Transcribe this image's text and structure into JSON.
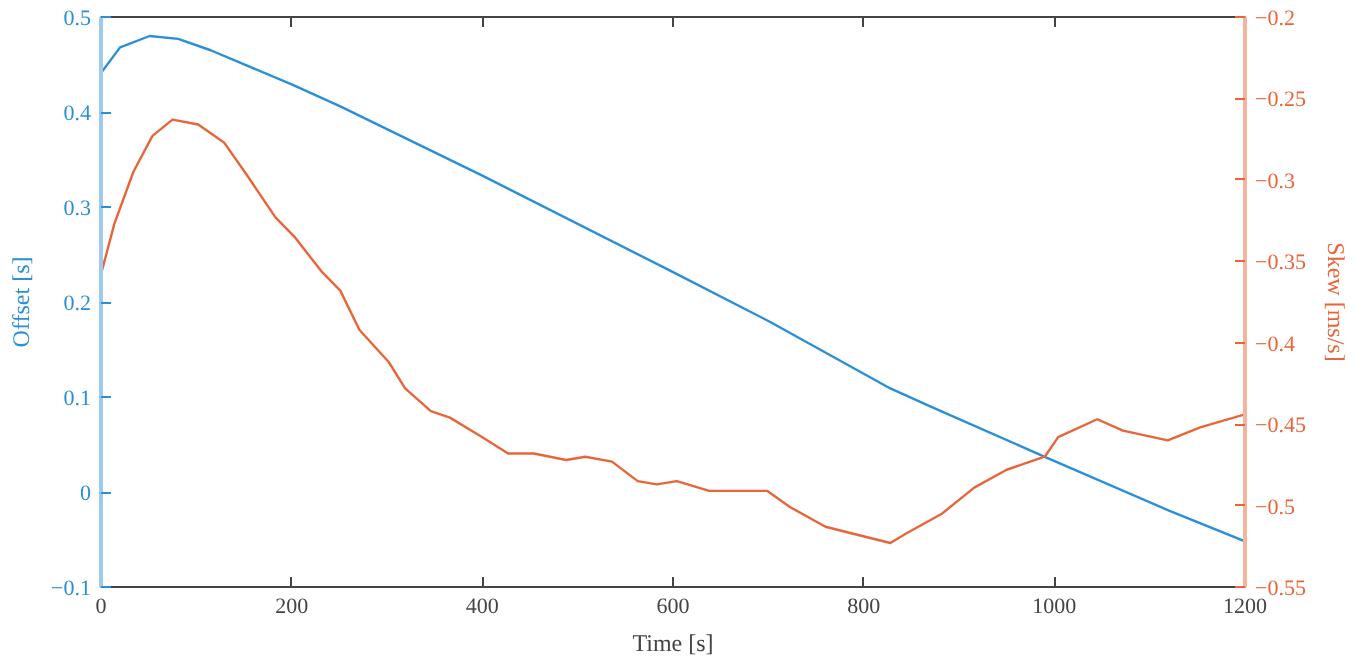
{
  "chart_data": {
    "type": "line",
    "xlabel": "Time [s]",
    "ylabel": "Offset [s]",
    "y2label": "Skew [ms/s]",
    "xlim": [
      0,
      1200
    ],
    "xticks": [
      0,
      200,
      400,
      600,
      800,
      1000,
      1200
    ],
    "ylim": [
      -0.1,
      0.5
    ],
    "yticks": [
      -0.1,
      0,
      0.1,
      0.2,
      0.3,
      0.4,
      0.5
    ],
    "y2lim": [
      -0.55,
      -0.2
    ],
    "y2ticks": [
      -0.55,
      -0.5,
      -0.45,
      -0.4,
      -0.35,
      -0.3,
      -0.25,
      -0.2
    ],
    "grid": false,
    "series": [
      {
        "color": "#2a8fd6",
        "x": [
          0,
          20,
          51,
          81,
          115,
          200,
          251,
          400,
          597,
          702,
          828,
          868,
          990,
          1119,
          1200
        ],
        "values": [
          0.441,
          0.468,
          0.48,
          0.477,
          0.465,
          0.429,
          0.406,
          0.333,
          0.233,
          0.179,
          0.109,
          0.091,
          0.037,
          -0.019,
          -0.052
        ]
      },
      {
        "color": "#e8653a",
        "axis": "y2",
        "x": [
          0,
          14,
          34,
          54,
          75,
          102,
          129,
          153,
          183,
          203,
          231,
          251,
          271,
          302,
          319,
          346,
          366,
          400,
          427,
          454,
          488,
          508,
          536,
          563,
          583,
          604,
          638,
          699,
          723,
          760,
          787,
          828,
          845,
          882,
          916,
          950,
          990,
          1004,
          1045,
          1072,
          1119,
          1153,
          1200
        ],
        "values": [
          -0.358,
          -0.327,
          -0.295,
          -0.273,
          -0.263,
          -0.266,
          -0.277,
          -0.297,
          -0.323,
          -0.335,
          -0.356,
          -0.368,
          -0.392,
          -0.412,
          -0.428,
          -0.442,
          -0.446,
          -0.458,
          -0.468,
          -0.468,
          -0.472,
          -0.47,
          -0.473,
          -0.485,
          -0.487,
          -0.485,
          -0.491,
          -0.491,
          -0.501,
          -0.513,
          -0.517,
          -0.523,
          -0.517,
          -0.505,
          -0.489,
          -0.478,
          -0.47,
          -0.458,
          -0.447,
          -0.454,
          -0.46,
          -0.452,
          -0.444
        ]
      }
    ]
  }
}
